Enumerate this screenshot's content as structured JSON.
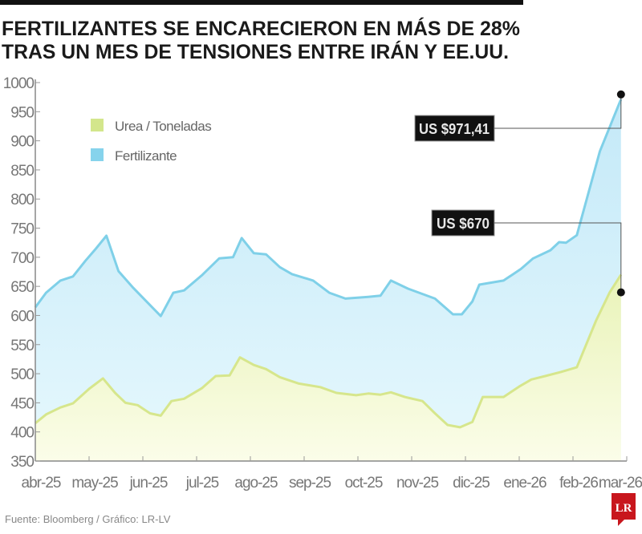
{
  "chart_data": {
    "type": "area",
    "title": "FERTILIZANTES SE ENCARECIERON EN MÁS DE 28%",
    "subtitle": "TRAS UN MES DE TENSIONES ENTRE IRÁN Y EE.UU.",
    "source": "Fuente: Bloomberg / Gráfico: LR-LV",
    "logo": "LR",
    "ylim": [
      350,
      1000
    ],
    "yticks": [
      "1000",
      "950",
      "900",
      "850",
      "800",
      "750",
      "700",
      "650",
      "600",
      "550",
      "500",
      "450",
      "400",
      "350"
    ],
    "xticks": [
      "abr-25",
      "may-25",
      "jun-25",
      "jul-25",
      "ago-25",
      "sep-25",
      "oct-25",
      "nov-25",
      "dic-25",
      "ene-26",
      "feb-26",
      "mar-26"
    ],
    "grid": false,
    "legend_position": "top-left",
    "series": [
      {
        "name": "Fertilizante",
        "color": "#7fd0e8",
        "fill": "#cdeefa",
        "points": [
          [
            "2025-04-01",
            614
          ],
          [
            "2025-04-07",
            639
          ],
          [
            "2025-04-15",
            660
          ],
          [
            "2025-04-22",
            667
          ],
          [
            "2025-04-29",
            694
          ],
          [
            "2025-05-05",
            715
          ],
          [
            "2025-05-11",
            737
          ],
          [
            "2025-05-18",
            676
          ],
          [
            "2025-05-26",
            649
          ],
          [
            "2025-06-04",
            621
          ],
          [
            "2025-06-11",
            599
          ],
          [
            "2025-06-18",
            639
          ],
          [
            "2025-06-24",
            643
          ],
          [
            "2025-07-04",
            669
          ],
          [
            "2025-07-14",
            698
          ],
          [
            "2025-07-22",
            700
          ],
          [
            "2025-07-27",
            733
          ],
          [
            "2025-08-03",
            707
          ],
          [
            "2025-08-10",
            705
          ],
          [
            "2025-08-18",
            683
          ],
          [
            "2025-08-25",
            671
          ],
          [
            "2025-09-06",
            660
          ],
          [
            "2025-09-15",
            639
          ],
          [
            "2025-09-24",
            629
          ],
          [
            "2025-10-07",
            632
          ],
          [
            "2025-10-14",
            634
          ],
          [
            "2025-10-20",
            660
          ],
          [
            "2025-10-30",
            646
          ],
          [
            "2025-11-14",
            629
          ],
          [
            "2025-11-24",
            602
          ],
          [
            "2025-11-29",
            602
          ],
          [
            "2025-12-05",
            624
          ],
          [
            "2025-12-09",
            653
          ],
          [
            "2025-12-23",
            660
          ],
          [
            "2026-01-02",
            680
          ],
          [
            "2026-01-09",
            698
          ],
          [
            "2026-01-19",
            712
          ],
          [
            "2026-01-24",
            726
          ],
          [
            "2026-01-28",
            725
          ],
          [
            "2026-02-03",
            738
          ],
          [
            "2026-02-15",
            882
          ],
          [
            "2026-02-26",
            971.41
          ]
        ]
      },
      {
        "name": "Urea / Toneladas",
        "color": "#d6e68c",
        "fill": "#eef6c6",
        "points": [
          [
            "2025-04-01",
            415
          ],
          [
            "2025-04-07",
            430
          ],
          [
            "2025-04-15",
            442
          ],
          [
            "2025-04-22",
            449
          ],
          [
            "2025-05-01",
            474
          ],
          [
            "2025-05-09",
            492
          ],
          [
            "2025-05-16",
            467
          ],
          [
            "2025-05-22",
            450
          ],
          [
            "2025-05-29",
            446
          ],
          [
            "2025-06-05",
            432
          ],
          [
            "2025-06-11",
            428
          ],
          [
            "2025-06-17",
            453
          ],
          [
            "2025-06-24",
            457
          ],
          [
            "2025-07-04",
            475
          ],
          [
            "2025-07-12",
            496
          ],
          [
            "2025-07-20",
            497
          ],
          [
            "2025-07-26",
            528
          ],
          [
            "2025-08-03",
            515
          ],
          [
            "2025-08-10",
            508
          ],
          [
            "2025-08-18",
            494
          ],
          [
            "2025-08-29",
            483
          ],
          [
            "2025-09-10",
            477
          ],
          [
            "2025-09-19",
            467
          ],
          [
            "2025-09-30",
            463
          ],
          [
            "2025-10-07",
            466
          ],
          [
            "2025-10-14",
            464
          ],
          [
            "2025-10-20",
            468
          ],
          [
            "2025-10-28",
            460
          ],
          [
            "2025-11-07",
            453
          ],
          [
            "2025-11-14",
            432
          ],
          [
            "2025-11-21",
            412
          ],
          [
            "2025-11-28",
            408
          ],
          [
            "2025-12-05",
            417
          ],
          [
            "2025-12-11",
            460
          ],
          [
            "2025-12-23",
            460
          ],
          [
            "2026-01-01",
            478
          ],
          [
            "2026-01-08",
            490
          ],
          [
            "2026-01-16",
            496
          ],
          [
            "2026-01-25",
            503
          ],
          [
            "2026-02-03",
            511
          ],
          [
            "2026-02-13",
            591
          ],
          [
            "2026-02-20",
            639
          ],
          [
            "2026-02-26",
            670
          ]
        ]
      }
    ],
    "annotations": [
      {
        "label": "US $971,41",
        "series": "Fertilizante",
        "value": 971.41
      },
      {
        "label": "US $670",
        "series": "Urea / Toneladas",
        "value": 670
      }
    ]
  }
}
